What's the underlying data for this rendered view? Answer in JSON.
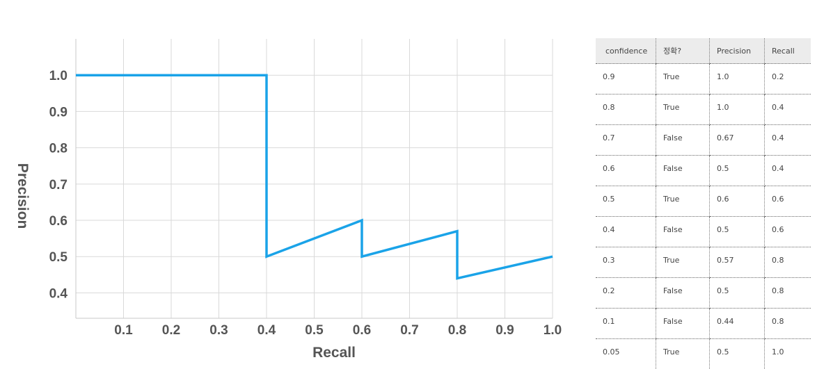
{
  "chart_data": {
    "type": "line",
    "xlabel": "Recall",
    "ylabel": "Precision",
    "xlim": [
      0.0,
      1.0
    ],
    "ylim": [
      0.33,
      1.1
    ],
    "xticks": [
      0.1,
      0.2,
      0.3,
      0.4,
      0.5,
      0.6,
      0.7,
      0.8,
      0.9,
      1.0
    ],
    "yticks": [
      0.4,
      0.5,
      0.6,
      0.7,
      0.8,
      0.9,
      1.0
    ],
    "grid": true,
    "line_color": "#1aa3e8",
    "series": [
      {
        "x": [
          0.0,
          0.4,
          0.4,
          0.6,
          0.6,
          0.8,
          0.8,
          1.0
        ],
        "y": [
          1.0,
          1.0,
          0.5,
          0.6,
          0.5,
          0.57,
          0.44,
          0.5
        ]
      }
    ]
  },
  "table": {
    "headers": [
      "confidence",
      "정확?",
      "Precision",
      "Recall"
    ],
    "rows": [
      [
        "0.9",
        "True",
        "1.0",
        "0.2"
      ],
      [
        "0.8",
        "True",
        "1.0",
        "0.4"
      ],
      [
        "0.7",
        "False",
        "0.67",
        "0.4"
      ],
      [
        "0.6",
        "False",
        "0.5",
        "0.4"
      ],
      [
        "0.5",
        "True",
        "0.6",
        "0.6"
      ],
      [
        "0.4",
        "False",
        "0.5",
        "0.6"
      ],
      [
        "0.3",
        "True",
        "0.57",
        "0.8"
      ],
      [
        "0.2",
        "False",
        "0.5",
        "0.8"
      ],
      [
        "0.1",
        "False",
        "0.44",
        "0.8"
      ],
      [
        "0.05",
        "True",
        "0.5",
        "1.0"
      ]
    ]
  }
}
